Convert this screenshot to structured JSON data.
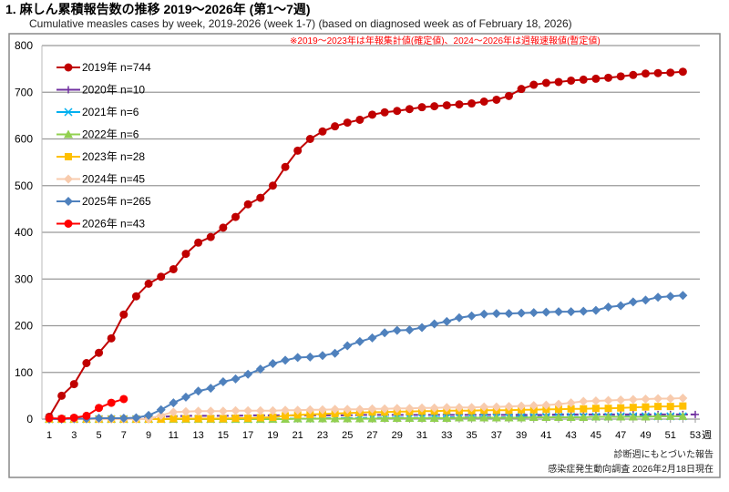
{
  "chart_data": {
    "type": "line",
    "title": "1. 麻しん累積報告数の推移  2019～2026年 (第1～7週)",
    "subtitle": "Cumulative measles cases by week, 2019-2026 (week 1-7)  (based on diagnosed week as of February 18, 2026)",
    "note": "※2019～2023年は年報集計値(確定値)、2024～2026年は週報速報値(暫定値)",
    "footer_1": "診断週にもとづいた報告",
    "footer_2": "感染症発生動向調査 2026年2月18日現在",
    "xlabel": "週",
    "xlim": [
      1,
      53
    ],
    "ylim": [
      0,
      800
    ],
    "x_ticks": [
      1,
      3,
      5,
      7,
      9,
      11,
      13,
      15,
      17,
      19,
      21,
      23,
      25,
      27,
      29,
      31,
      33,
      35,
      37,
      39,
      41,
      43,
      45,
      47,
      49,
      51,
      53
    ],
    "y_ticks": [
      0,
      100,
      200,
      300,
      400,
      500,
      600,
      700,
      800
    ],
    "grid": true,
    "legend_position": "top-left",
    "series": [
      {
        "name": "2019年 n=744",
        "color": "#c00000",
        "marker": "circle",
        "values": [
          5,
          50,
          75,
          120,
          142,
          173,
          224,
          263,
          290,
          305,
          321,
          354,
          378,
          390,
          410,
          433,
          460,
          474,
          500,
          540,
          575,
          600,
          616,
          627,
          635,
          641,
          652,
          657,
          660,
          664,
          668,
          670,
          672,
          674,
          676,
          680,
          684,
          692,
          707,
          716,
          720,
          722,
          725,
          727,
          729,
          731,
          734,
          737,
          740,
          741,
          742,
          744
        ]
      },
      {
        "name": "2020年 n=10",
        "color": "#7030a0",
        "marker": "plus",
        "values": [
          0,
          0,
          0,
          0,
          0,
          0,
          0,
          0,
          2,
          5,
          6,
          7,
          7,
          7,
          7,
          7,
          8,
          8,
          8,
          8,
          8,
          8,
          8,
          8,
          8,
          9,
          9,
          9,
          9,
          9,
          9,
          9,
          9,
          9,
          9,
          9,
          9,
          9,
          9,
          9,
          9,
          10,
          10,
          10,
          10,
          10,
          10,
          10,
          10,
          10,
          10,
          10,
          10
        ]
      },
      {
        "name": "2021年 n=6",
        "color": "#00b0f0",
        "marker": "x",
        "values": [
          0,
          0,
          0,
          0,
          0,
          0,
          0,
          0,
          0,
          0,
          0,
          0,
          0,
          0,
          0,
          0,
          0,
          0,
          0,
          1,
          1,
          1,
          2,
          2,
          2,
          2,
          3,
          3,
          3,
          3,
          3,
          3,
          4,
          4,
          4,
          4,
          4,
          4,
          5,
          5,
          5,
          5,
          5,
          5,
          5,
          5,
          6,
          6,
          6,
          6,
          6,
          6
        ]
      },
      {
        "name": "2022年 n=6",
        "color": "#92d050",
        "marker": "triangle",
        "values": [
          0,
          0,
          0,
          0,
          0,
          0,
          0,
          0,
          0,
          0,
          0,
          0,
          0,
          0,
          0,
          0,
          0,
          0,
          0,
          0,
          1,
          1,
          1,
          1,
          1,
          1,
          1,
          2,
          2,
          2,
          2,
          2,
          2,
          3,
          3,
          3,
          3,
          3,
          3,
          4,
          4,
          4,
          4,
          4,
          5,
          5,
          5,
          5,
          5,
          6,
          6,
          6
        ]
      },
      {
        "name": "2023年 n=28",
        "color": "#ffc000",
        "marker": "square",
        "values": [
          0,
          0,
          0,
          0,
          0,
          0,
          0,
          0,
          0,
          0,
          1,
          1,
          1,
          1,
          1,
          2,
          2,
          3,
          4,
          7,
          9,
          10,
          11,
          12,
          13,
          14,
          15,
          15,
          16,
          16,
          17,
          17,
          18,
          18,
          18,
          19,
          19,
          19,
          20,
          20,
          21,
          21,
          22,
          22,
          23,
          23,
          24,
          25,
          26,
          27,
          27,
          28
        ]
      },
      {
        "name": "2024年 n=45",
        "color": "#f8cbad",
        "marker": "diamond",
        "values": [
          0,
          0,
          0,
          0,
          0,
          0,
          0,
          0,
          0,
          8,
          15,
          16,
          17,
          17,
          17,
          18,
          18,
          18,
          18,
          19,
          19,
          20,
          20,
          21,
          21,
          21,
          22,
          22,
          23,
          23,
          24,
          24,
          25,
          25,
          25,
          26,
          26,
          27,
          28,
          29,
          30,
          32,
          35,
          38,
          39,
          40,
          41,
          42,
          43,
          44,
          44,
          45
        ]
      },
      {
        "name": "2025年 n=265",
        "color": "#4f81bd",
        "marker": "diamond",
        "values": [
          0,
          0,
          1,
          1,
          2,
          2,
          2,
          3,
          8,
          20,
          35,
          47,
          60,
          66,
          80,
          86,
          96,
          107,
          119,
          126,
          132,
          133,
          136,
          141,
          157,
          166,
          174,
          185,
          190,
          191,
          196,
          204,
          209,
          217,
          221,
          225,
          226,
          226,
          227,
          228,
          229,
          230,
          230,
          231,
          233,
          240,
          243,
          251,
          255,
          261,
          263,
          265
        ]
      },
      {
        "name": "2026年 n=43",
        "color": "#ff0000",
        "marker": "circle",
        "values": [
          2,
          1,
          3,
          7,
          24,
          35,
          43
        ]
      }
    ]
  }
}
